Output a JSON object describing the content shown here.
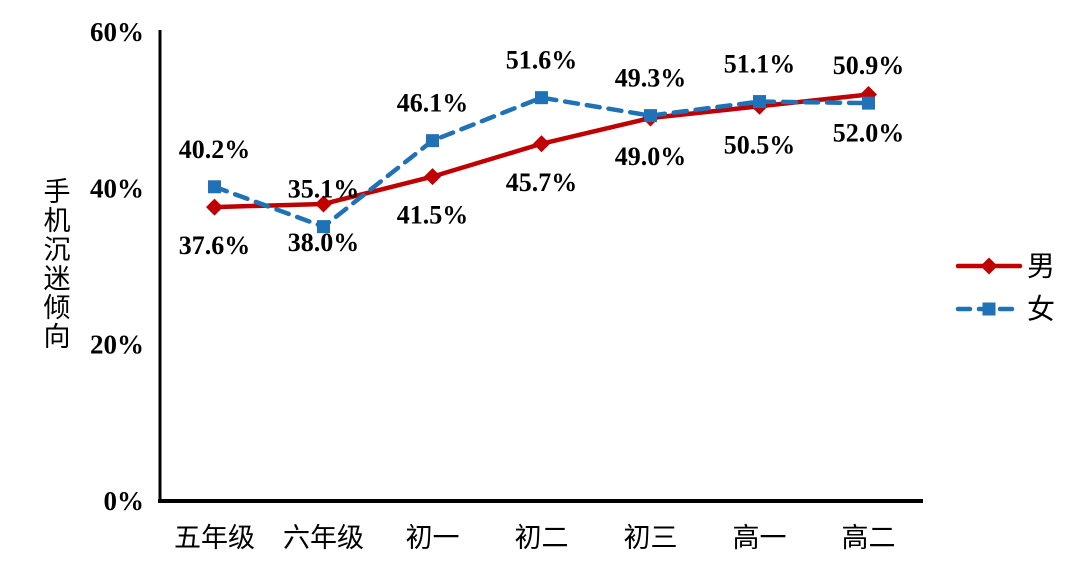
{
  "chart_data": {
    "type": "line",
    "categories": [
      "五年级",
      "六年级",
      "初一",
      "初二",
      "初三",
      "高一",
      "高二"
    ],
    "series": [
      {
        "name": "男",
        "values": [
          37.6,
          38.0,
          41.5,
          45.7,
          49.0,
          50.5,
          52.0
        ],
        "color": "#C00000",
        "marker": "diamond",
        "line_style": "solid",
        "label_position": "below"
      },
      {
        "name": "女",
        "values": [
          40.2,
          35.1,
          46.1,
          51.6,
          49.3,
          51.1,
          50.9
        ],
        "color": "#1F72B5",
        "marker": "square",
        "line_style": "dashed",
        "label_position": "above"
      }
    ],
    "title": "",
    "xlabel": "",
    "ylabel": "手机沉迷倾向",
    "ylim": [
      0,
      60
    ],
    "yticks": [
      {
        "value": 0,
        "label": "0%"
      },
      {
        "value": 20,
        "label": "20%"
      },
      {
        "value": 40,
        "label": "40%"
      },
      {
        "value": 60,
        "label": "60%"
      }
    ],
    "data_labels": {
      "男": [
        "37.6%",
        "38.0%",
        "41.5%",
        "45.7%",
        "49.0%",
        "50.5%",
        "52.0%"
      ],
      "女": [
        "40.2%",
        "35.1%",
        "46.1%",
        "51.6%",
        "49.3%",
        "51.1%",
        "50.9%"
      ]
    },
    "grid": false,
    "legend_position": "right",
    "legend": [
      "男",
      "女"
    ],
    "axis_color": "#000000",
    "label_color": "#000000"
  }
}
